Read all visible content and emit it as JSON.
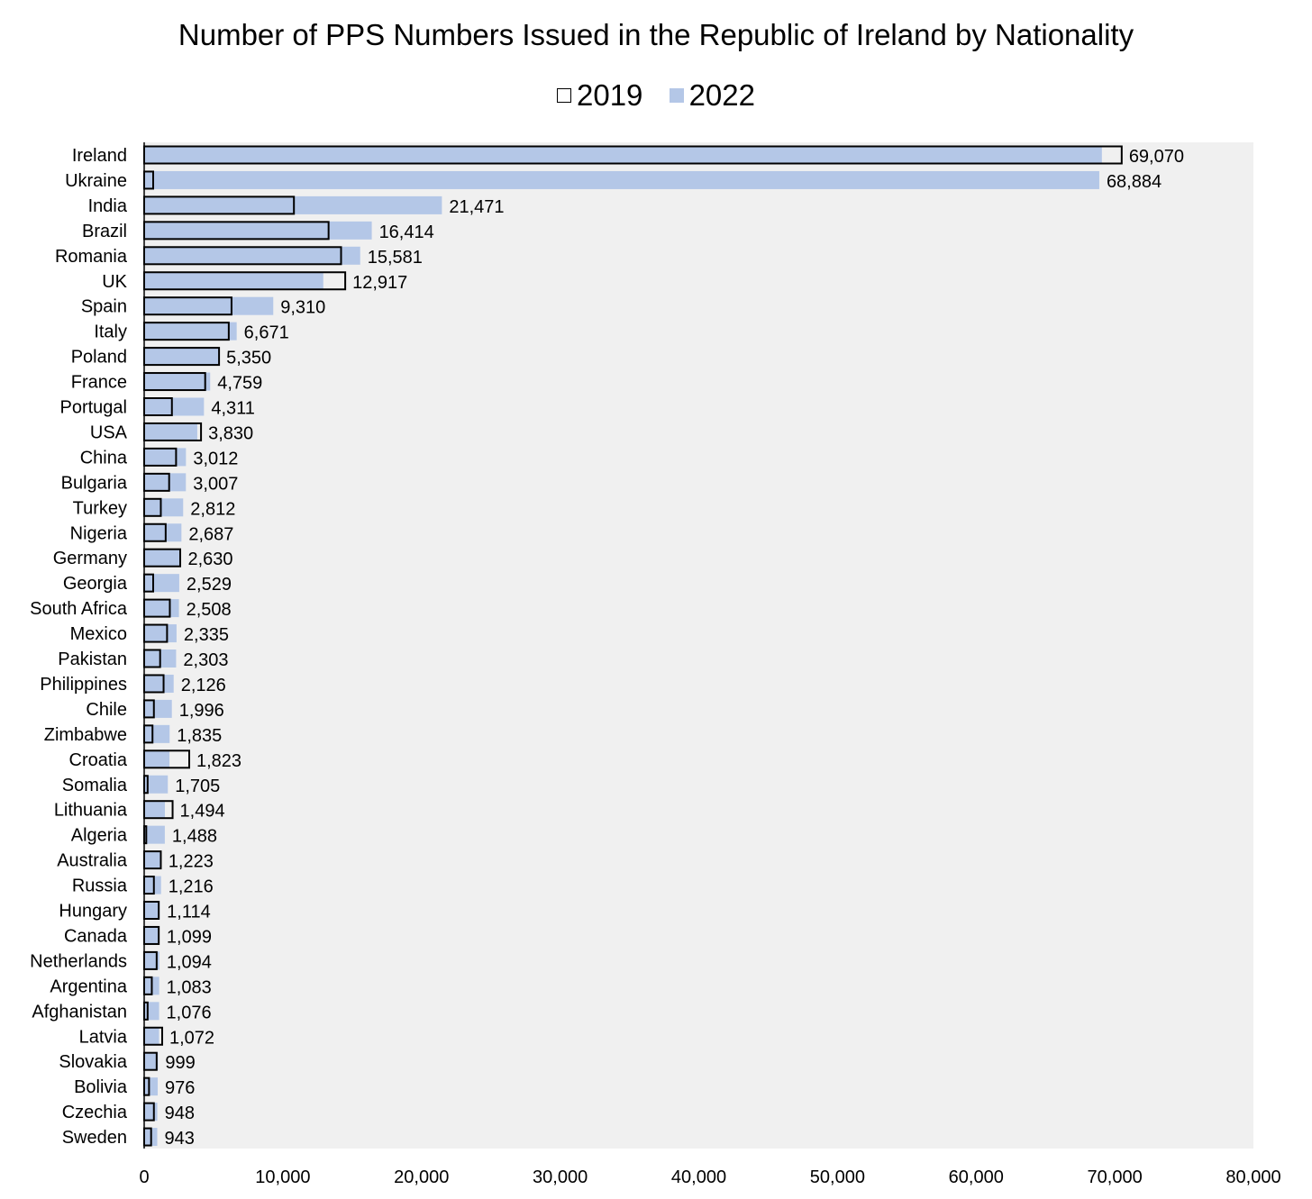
{
  "chart_data": {
    "type": "bar",
    "orientation": "horizontal",
    "title": "Number of PPS Numbers Issued in the Republic of Ireland by Nationality",
    "legend_position": "top",
    "categories": [
      "Ireland",
      "Ukraine",
      "India",
      "Brazil",
      "Romania",
      "UK",
      "Spain",
      "Italy",
      "Poland",
      "France",
      "Portugal",
      "USA",
      "China",
      "Bulgaria",
      "Turkey",
      "Nigeria",
      "Germany",
      "Georgia",
      "South Africa",
      "Mexico",
      "Pakistan",
      "Philippines",
      "Chile",
      "Zimbabwe",
      "Croatia",
      "Somalia",
      "Lithuania",
      "Algeria",
      "Australia",
      "Russia",
      "Hungary",
      "Canada",
      "Netherlands",
      "Argentina",
      "Afghanistan",
      "Latvia",
      "Slovakia",
      "Bolivia",
      "Czechia",
      "Sweden"
    ],
    "series": [
      {
        "name": "2019",
        "color": "#ffffff",
        "border": "#000000",
        "values": [
          70500,
          650,
          10800,
          13300,
          14200,
          14500,
          6300,
          6100,
          5400,
          4400,
          2000,
          4100,
          2300,
          1800,
          1200,
          1550,
          2600,
          650,
          1850,
          1650,
          1150,
          1400,
          700,
          600,
          3250,
          250,
          2050,
          150,
          1200,
          700,
          1050,
          1050,
          900,
          550,
          250,
          1300,
          900,
          350,
          700,
          500
        ]
      },
      {
        "name": "2022",
        "color": "#b4c7e7",
        "values": [
          69070,
          68884,
          21471,
          16414,
          15581,
          12917,
          9310,
          6671,
          5350,
          4759,
          4311,
          3830,
          3012,
          3007,
          2812,
          2687,
          2630,
          2529,
          2508,
          2335,
          2303,
          2126,
          1996,
          1835,
          1823,
          1705,
          1494,
          1488,
          1223,
          1216,
          1114,
          1099,
          1094,
          1083,
          1076,
          1072,
          999,
          976,
          948,
          943
        ]
      }
    ],
    "data_labels": [
      "69,070",
      "68,884",
      "21,471",
      "16,414",
      "15,581",
      "12,917",
      "9,310",
      "6,671",
      "5,350",
      "4,759",
      "4,311",
      "3,830",
      "3,012",
      "3,007",
      "2,812",
      "2,687",
      "2,630",
      "2,529",
      "2,508",
      "2,335",
      "2,303",
      "2,126",
      "1,996",
      "1,835",
      "1,823",
      "1,705",
      "1,494",
      "1,488",
      "1,223",
      "1,216",
      "1,114",
      "1,099",
      "1,094",
      "1,083",
      "1,076",
      "1,072",
      "999",
      "976",
      "948",
      "943"
    ],
    "xlim": [
      0,
      80000
    ],
    "x_ticks": [
      0,
      10000,
      20000,
      30000,
      40000,
      50000,
      60000,
      70000,
      80000
    ],
    "x_tick_labels": [
      "0",
      "10,000",
      "20,000",
      "30,000",
      "40,000",
      "50,000",
      "60,000",
      "70,000",
      "80,000"
    ],
    "grid": false
  },
  "colors": {
    "plot_background": "#f0f0f0",
    "bar_2022": "#b4c7e7",
    "bar_2019_border": "#000000"
  }
}
